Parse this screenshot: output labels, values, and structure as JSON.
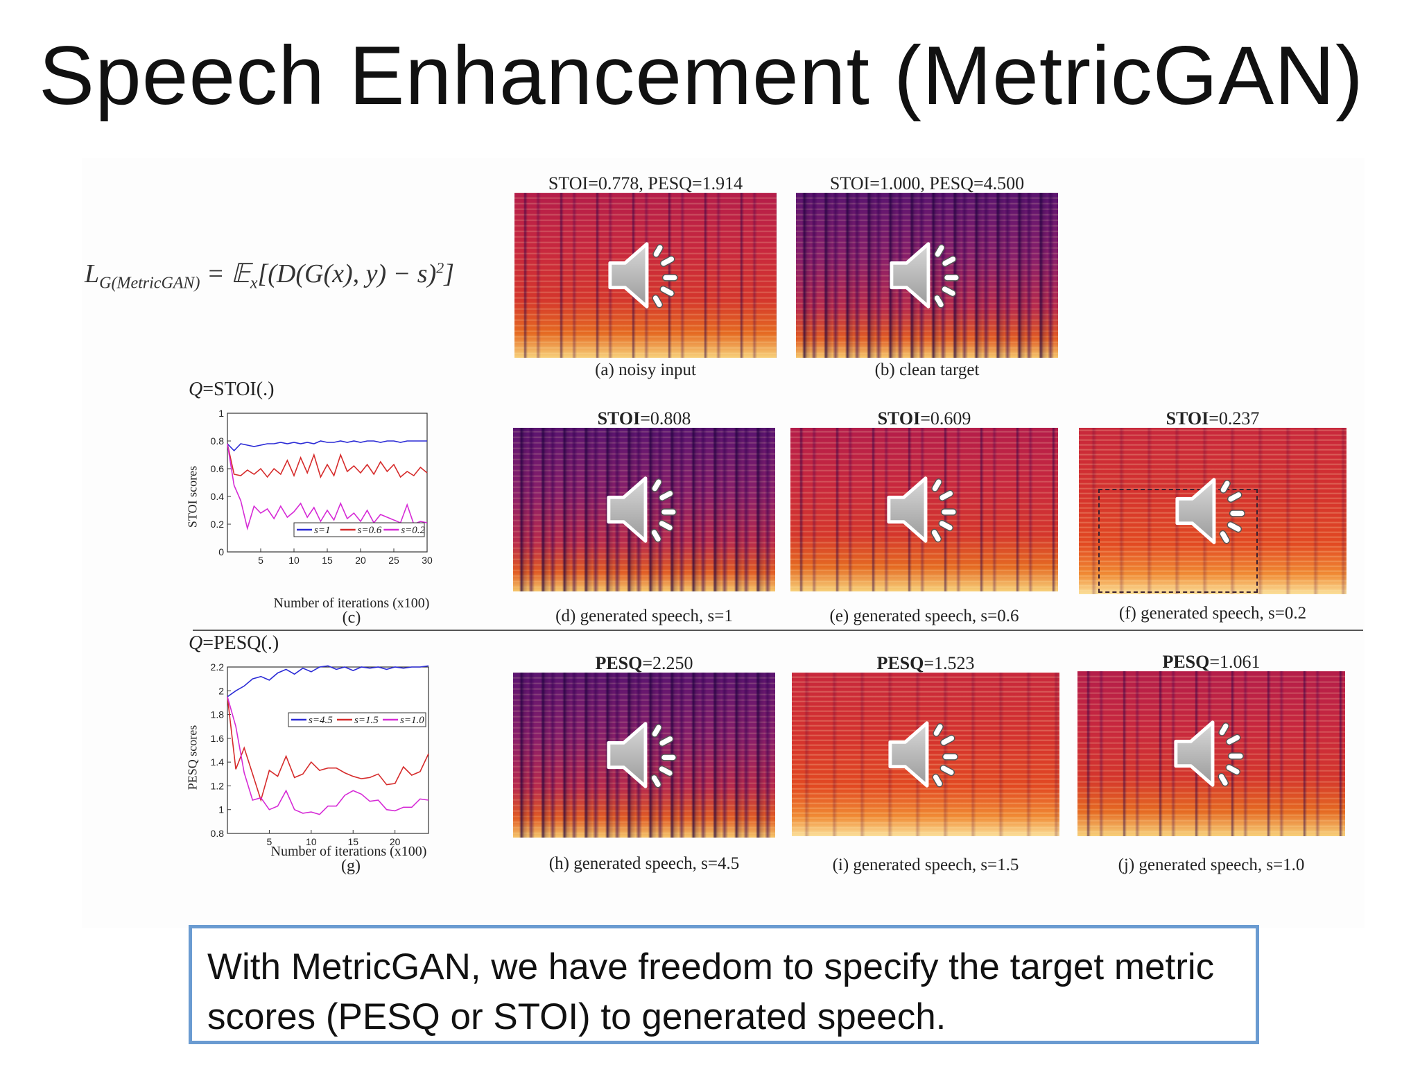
{
  "slide": {
    "title": "Speech Enhancement (MetricGAN)",
    "callout": "With MetricGAN, we have freedom to specify the target metric scores (PESQ or STOI) to generated speech."
  },
  "formula": {
    "lhs": "L",
    "lhs_sub": "G(MetricGAN)",
    "rhs": " = 𝔼",
    "rhs_sub": "x",
    "body": "[(D(G(x), y) − s)",
    "sup": "2",
    "tail": "]"
  },
  "top_row": [
    {
      "score": "STOI=0.778, PESQ=1.914",
      "caption": "(a) noisy input"
    },
    {
      "score": "STOI=1.000, PESQ=4.500",
      "caption": "(b) clean target"
    }
  ],
  "stoi_row": {
    "q_label": "Q",
    "q_rest": "=STOI(.)",
    "items": [
      {
        "metric": "STOI",
        "value": "=0.808",
        "caption": "(d) generated speech, s=1"
      },
      {
        "metric": "STOI",
        "value": "=0.609",
        "caption": "(e) generated speech, s=0.6"
      },
      {
        "metric": "STOI",
        "value": "=0.237",
        "caption": "(f) generated speech, s=0.2"
      }
    ]
  },
  "pesq_row": {
    "q_label": "Q",
    "q_rest": "=PESQ(.)",
    "items": [
      {
        "metric": "PESQ",
        "value": "=2.250",
        "caption": "(h) generated speech, s=4.5"
      },
      {
        "metric": "PESQ",
        "value": "=1.523",
        "caption": "(i) generated speech, s=1.5"
      },
      {
        "metric": "PESQ",
        "value": "=1.061",
        "caption": "(j) generated speech, s=1.0"
      }
    ]
  },
  "icons": {
    "speaker": "speaker-volume-icon"
  },
  "chart_data": [
    {
      "type": "line",
      "xlabel": "Number of iterations (x100)",
      "ylabel": "STOI scores",
      "subcaption": "(c)",
      "xlim": [
        0,
        30
      ],
      "ylim": [
        0,
        1
      ],
      "xticks": [
        5,
        10,
        15,
        20,
        25,
        30
      ],
      "yticks": [
        0,
        0.2,
        0.4,
        0.6,
        0.8,
        1
      ],
      "ytick_labels": [
        "0",
        "0.2",
        "0.4",
        "0.6",
        "0.8",
        "1"
      ],
      "legend": "bottom-right",
      "x": [
        0,
        1,
        2,
        3,
        4,
        5,
        6,
        7,
        8,
        9,
        10,
        11,
        12,
        13,
        14,
        15,
        16,
        17,
        18,
        19,
        20,
        21,
        22,
        23,
        24,
        25,
        26,
        27,
        28,
        29,
        30
      ],
      "series": [
        {
          "name": "s=1",
          "color": "#2b2bd6",
          "values": [
            0.78,
            0.73,
            0.78,
            0.77,
            0.76,
            0.77,
            0.78,
            0.78,
            0.79,
            0.78,
            0.79,
            0.78,
            0.79,
            0.78,
            0.8,
            0.79,
            0.79,
            0.8,
            0.79,
            0.8,
            0.79,
            0.8,
            0.8,
            0.79,
            0.8,
            0.8,
            0.79,
            0.8,
            0.8,
            0.8,
            0.8
          ]
        },
        {
          "name": "s=0.6",
          "color": "#d62b2b",
          "values": [
            0.78,
            0.56,
            0.55,
            0.59,
            0.56,
            0.6,
            0.54,
            0.6,
            0.56,
            0.66,
            0.55,
            0.68,
            0.57,
            0.7,
            0.54,
            0.63,
            0.55,
            0.7,
            0.58,
            0.62,
            0.57,
            0.63,
            0.56,
            0.65,
            0.58,
            0.63,
            0.54,
            0.58,
            0.55,
            0.61,
            0.57
          ]
        },
        {
          "name": "s=0.2",
          "color": "#d62bd6",
          "values": [
            0.78,
            0.48,
            0.37,
            0.17,
            0.33,
            0.28,
            0.31,
            0.24,
            0.33,
            0.25,
            0.29,
            0.35,
            0.25,
            0.32,
            0.22,
            0.3,
            0.23,
            0.35,
            0.24,
            0.28,
            0.22,
            0.3,
            0.21,
            0.27,
            0.25,
            0.23,
            0.21,
            0.34,
            0.2,
            0.22,
            0.21
          ]
        }
      ]
    },
    {
      "type": "line",
      "xlabel": "Number of iterations (x100)",
      "ylabel": "PESQ scores",
      "subcaption": "(g)",
      "xlim": [
        0,
        24
      ],
      "ylim": [
        0.8,
        2.2
      ],
      "xticks": [
        5,
        10,
        15,
        20
      ],
      "yticks": [
        0.8,
        1.0,
        1.2,
        1.4,
        1.6,
        1.8,
        2.0,
        2.2
      ],
      "ytick_labels": [
        "0.8",
        "1",
        "1.2",
        "1.4",
        "1.6",
        "1.8",
        "2",
        "2.2"
      ],
      "legend": "top-right",
      "x": [
        0,
        1,
        2,
        3,
        4,
        5,
        6,
        7,
        8,
        9,
        10,
        11,
        12,
        13,
        14,
        15,
        16,
        17,
        18,
        19,
        20,
        21,
        22,
        23,
        24
      ],
      "series": [
        {
          "name": "s=4.5",
          "color": "#2b2bd6",
          "values": [
            1.95,
            2.0,
            2.04,
            2.1,
            2.12,
            2.09,
            2.15,
            2.18,
            2.14,
            2.19,
            2.16,
            2.2,
            2.21,
            2.18,
            2.2,
            2.17,
            2.2,
            2.19,
            2.2,
            2.18,
            2.2,
            2.19,
            2.2,
            2.2,
            2.21
          ]
        },
        {
          "name": "s=1.5",
          "color": "#d62b2b",
          "values": [
            1.95,
            1.34,
            1.52,
            1.3,
            1.08,
            1.33,
            1.28,
            1.45,
            1.27,
            1.3,
            1.4,
            1.33,
            1.35,
            1.35,
            1.31,
            1.28,
            1.26,
            1.27,
            1.3,
            1.21,
            1.22,
            1.36,
            1.29,
            1.32,
            1.47
          ]
        },
        {
          "name": "s=1.0",
          "color": "#d62bd6",
          "values": [
            1.95,
            1.7,
            1.31,
            1.08,
            1.1,
            1.0,
            1.03,
            1.16,
            1.0,
            0.97,
            0.98,
            0.96,
            1.03,
            1.03,
            1.12,
            1.16,
            1.13,
            1.07,
            1.08,
            1.0,
            0.99,
            1.02,
            1.02,
            1.09,
            1.08
          ]
        }
      ]
    }
  ]
}
